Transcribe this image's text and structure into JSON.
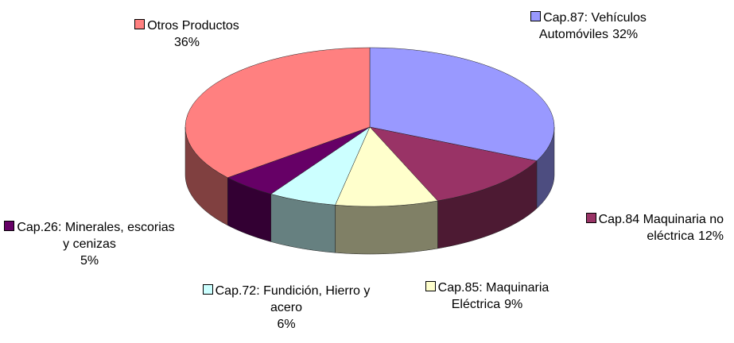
{
  "chart_data": {
    "type": "pie",
    "categories": [
      "Cap.87: Vehículos Automóviles",
      "Cap.84 Maquinaria no eléctrica",
      "Cap.85: Maquinaria Eléctrica",
      "Cap.72: Fundición, Hierro y acero",
      "Cap.26: Minerales, escorias y cenizas",
      "Otros Productos"
    ],
    "values": [
      32,
      12,
      9,
      6,
      5,
      36
    ],
    "value_labels": [
      "32%",
      "12%",
      "9%",
      "6%",
      "5%",
      "36%"
    ],
    "colors": [
      "#9999ff",
      "#993366",
      "#ffffcc",
      "#ccffff",
      "#660066",
      "#ff8080"
    ]
  }
}
